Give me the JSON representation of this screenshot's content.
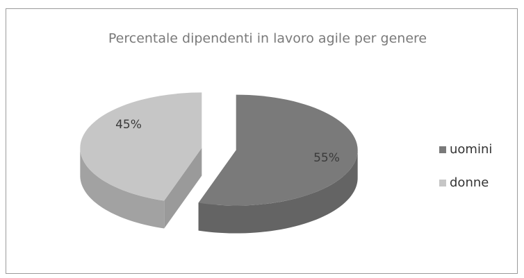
{
  "chart_data": {
    "type": "pie",
    "title": "Percentale dipendenti in lavoro agile per genere",
    "categories": [
      "uomini",
      "donne"
    ],
    "values": [
      55,
      45
    ],
    "value_labels": [
      "55%",
      "45%"
    ],
    "colors": [
      "#7a7a7a",
      "#c6c6c6"
    ],
    "legend": "right"
  }
}
